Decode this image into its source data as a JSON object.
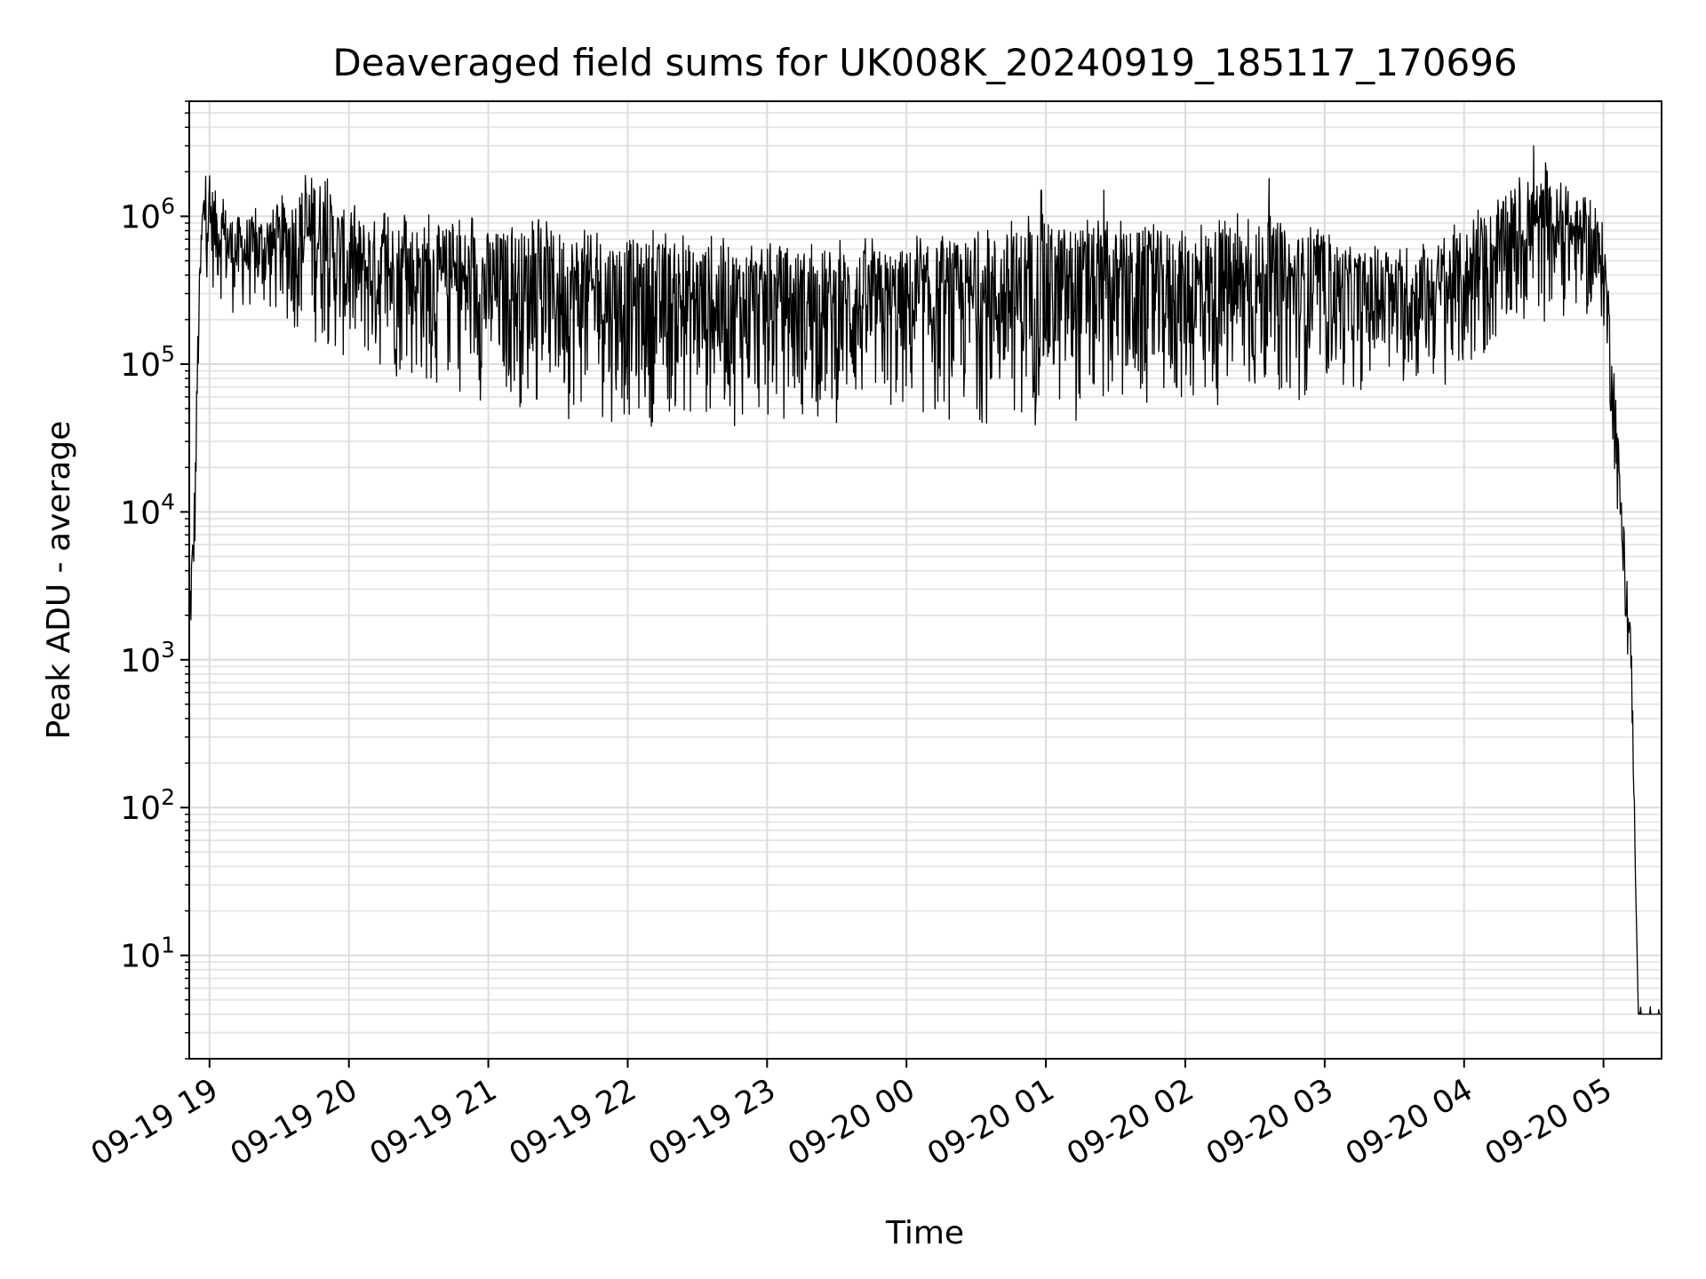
{
  "chart_data": {
    "type": "line",
    "title": "Deaveraged field sums for UK008K_20240919_185117_170696",
    "xlabel": "Time",
    "ylabel": "Peak ADU - average",
    "yscale": "log",
    "ylim": [
      2,
      6000000
    ],
    "xlim": [
      "2024-09-19 18:51:17",
      "2024-09-20 05:25:00"
    ],
    "grid": true,
    "legend": "none",
    "line_color": "#000000",
    "x_ticks": [
      {
        "time": "2024-09-19 19:00",
        "label": "09-19 19"
      },
      {
        "time": "2024-09-19 20:00",
        "label": "09-19 20"
      },
      {
        "time": "2024-09-19 21:00",
        "label": "09-19 21"
      },
      {
        "time": "2024-09-19 22:00",
        "label": "09-19 22"
      },
      {
        "time": "2024-09-19 23:00",
        "label": "09-19 23"
      },
      {
        "time": "2024-09-20 00:00",
        "label": "09-20 00"
      },
      {
        "time": "2024-09-20 01:00",
        "label": "09-20 01"
      },
      {
        "time": "2024-09-20 02:00",
        "label": "09-20 02"
      },
      {
        "time": "2024-09-20 03:00",
        "label": "09-20 03"
      },
      {
        "time": "2024-09-20 04:00",
        "label": "09-20 04"
      },
      {
        "time": "2024-09-20 05:00",
        "label": "09-20 05"
      }
    ],
    "y_ticks": [
      {
        "value": 10,
        "base": "10",
        "exp": "1"
      },
      {
        "value": 100,
        "base": "10",
        "exp": "2"
      },
      {
        "value": 1000,
        "base": "10",
        "exp": "3"
      },
      {
        "value": 10000,
        "base": "10",
        "exp": "4"
      },
      {
        "value": 100000,
        "base": "10",
        "exp": "5"
      },
      {
        "value": 1000000,
        "base": "10",
        "exp": "6"
      }
    ],
    "series_envelope": {
      "x": [
        "2024-09-19 18:51",
        "2024-09-19 18:52",
        "2024-09-19 18:53",
        "2024-09-19 18:54",
        "2024-09-19 18:55",
        "2024-09-19 18:56",
        "2024-09-19 18:57",
        "2024-09-19 18:58",
        "2024-09-19 19:00",
        "2024-09-19 19:10",
        "2024-09-19 19:20",
        "2024-09-19 19:35",
        "2024-09-19 19:45",
        "2024-09-19 20:00",
        "2024-09-19 20:30",
        "2024-09-19 21:00",
        "2024-09-19 21:30",
        "2024-09-19 22:00",
        "2024-09-19 22:30",
        "2024-09-19 23:00",
        "2024-09-19 23:30",
        "2024-09-20 00:00",
        "2024-09-20 00:30",
        "2024-09-20 01:00",
        "2024-09-20 01:30",
        "2024-09-20 02:00",
        "2024-09-20 02:30",
        "2024-09-20 03:00",
        "2024-09-20 03:30",
        "2024-09-20 04:00",
        "2024-09-20 04:15",
        "2024-09-20 04:30",
        "2024-09-20 04:45",
        "2024-09-20 05:00",
        "2024-09-20 05:01",
        "2024-09-20 05:05",
        "2024-09-20 05:10",
        "2024-09-20 05:12",
        "2024-09-20 05:15",
        "2024-09-20 05:20",
        "2024-09-20 05:25"
      ],
      "upper": [
        1500,
        5000,
        8000,
        30000,
        200000,
        600000,
        1500000,
        1800000,
        1700000,
        1000000,
        1000000,
        1300000,
        2000000,
        1000000,
        900000,
        800000,
        800000,
        700000,
        650000,
        600000,
        600000,
        600000,
        700000,
        900000,
        800000,
        800000,
        900000,
        700000,
        500000,
        800000,
        1200000,
        1800000,
        1500000,
        900000,
        600000,
        80000,
        3000,
        1500,
        4,
        4,
        4
      ],
      "lower": [
        800,
        1000,
        2000,
        5000,
        50000,
        150000,
        300000,
        400000,
        300000,
        200000,
        200000,
        150000,
        120000,
        80000,
        60000,
        50000,
        40000,
        35000,
        35000,
        35000,
        35000,
        35000,
        35000,
        35000,
        35000,
        40000,
        40000,
        60000,
        60000,
        60000,
        100000,
        150000,
        200000,
        150000,
        100000,
        15000,
        1000,
        500,
        4,
        4,
        4
      ],
      "spikes": [
        {
          "time": "2024-09-20 00:58",
          "value": 1500000
        },
        {
          "time": "2024-09-20 01:25",
          "value": 1500000
        },
        {
          "time": "2024-09-20 02:36",
          "value": 1800000
        },
        {
          "time": "2024-09-20 04:30",
          "value": 3000000
        },
        {
          "time": "2024-09-20 04:35",
          "value": 2300000
        }
      ]
    }
  }
}
